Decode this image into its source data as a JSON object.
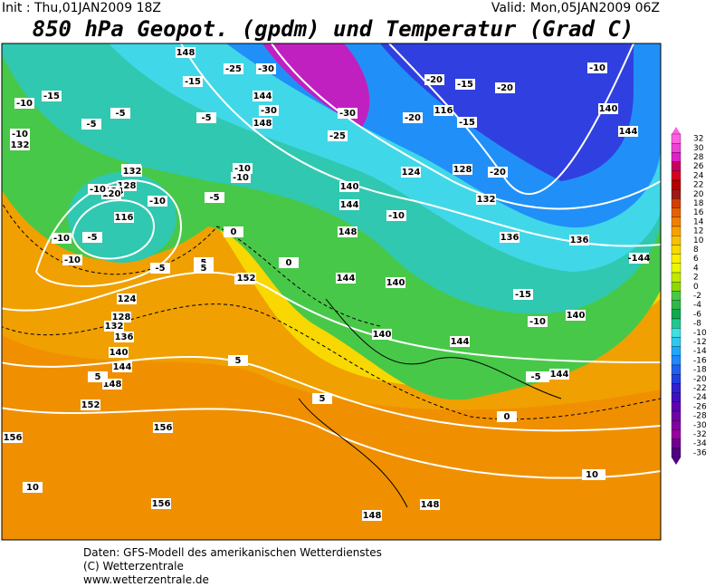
{
  "header": {
    "init": "Init : Thu,01JAN2009 18Z",
    "valid": "Valid: Mon,05JAN2009 06Z",
    "title": "850 hPa Geopot. (gpdm) und Temperatur (Grad C)"
  },
  "map": {
    "labels": [
      "148",
      "-25",
      "-30",
      "-15",
      "-10",
      "-15",
      "-5",
      "-5",
      "144",
      "148",
      "-30",
      "-30",
      "-25",
      "-20",
      "-15",
      "-20",
      "116",
      "-15",
      "-20",
      "-10",
      "140",
      "144",
      "-10",
      "132",
      "-10",
      "132",
      "128",
      "124",
      "120",
      "116",
      "-10",
      "-10",
      "-10",
      "-5",
      "-5",
      "-10",
      "-10",
      "-5",
      "140",
      "144",
      "148",
      "-10",
      "124",
      "128",
      "-20",
      "132",
      "136",
      "136",
      "-5",
      "152",
      "144",
      "-15",
      "140",
      "-10",
      "140",
      "0",
      "5",
      "-10",
      "124",
      "128",
      "132",
      "136",
      "140",
      "144",
      "148",
      "152",
      "156",
      "156",
      "10",
      "156",
      "148",
      "148",
      "140",
      "144",
      "-5",
      "144",
      "0",
      "5",
      "-5",
      "10",
      "152",
      "-144",
      "0",
      "5",
      "5",
      "5",
      "10"
    ]
  },
  "colorbar": {
    "values": [
      32,
      30,
      28,
      26,
      24,
      22,
      20,
      18,
      16,
      14,
      12,
      10,
      8,
      6,
      4,
      2,
      0,
      -2,
      -4,
      -6,
      -8,
      -10,
      -12,
      -14,
      -16,
      -18,
      -20,
      -22,
      -24,
      -26,
      -28,
      -30,
      -32,
      -34,
      -36
    ],
    "colors": [
      "#ff60e0",
      "#f040d8",
      "#e020c8",
      "#c80060",
      "#d80020",
      "#b00000",
      "#a01818",
      "#d04000",
      "#e86000",
      "#f08000",
      "#f8a000",
      "#f8c000",
      "#f8d800",
      "#f8f000",
      "#e8f800",
      "#c0e800",
      "#90d800",
      "#48c848",
      "#30b848",
      "#10a850",
      "#20c890",
      "#40e0e0",
      "#30c8f0",
      "#20a8f8",
      "#2088f8",
      "#2060f0",
      "#2040e0",
      "#3020d0",
      "#4010c0",
      "#6000b0",
      "#7000a8",
      "#8000a0",
      "#9800a0",
      "#700090",
      "#500080"
    ]
  },
  "footer": {
    "lines": [
      "Daten: GFS-Modell des amerikanischen Wetterdienstes",
      "(C) Wetterzentrale",
      "www.wetterzentrale.de"
    ]
  }
}
